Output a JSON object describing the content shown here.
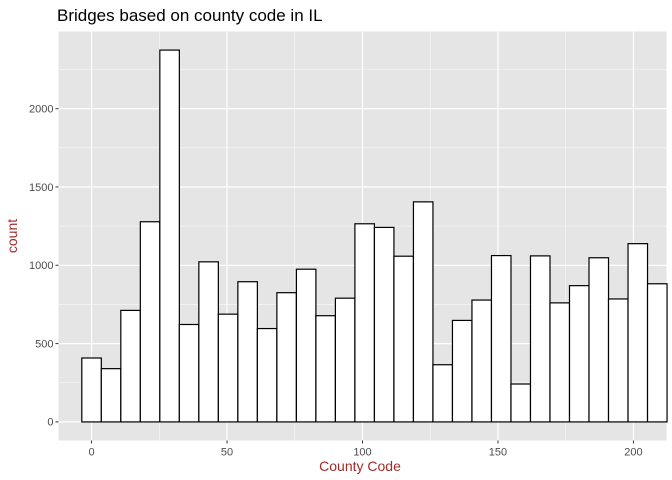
{
  "chart_data": {
    "type": "bar",
    "title": "Bridges based on county code in IL",
    "xlabel": "County Code",
    "ylabel": "count",
    "bin_width": 7.2,
    "bins": [
      {
        "x": 0.0,
        "count": 408
      },
      {
        "x": 7.2,
        "count": 340
      },
      {
        "x": 14.4,
        "count": 712
      },
      {
        "x": 21.6,
        "count": 1278
      },
      {
        "x": 28.8,
        "count": 2374
      },
      {
        "x": 36.0,
        "count": 622
      },
      {
        "x": 43.2,
        "count": 1022
      },
      {
        "x": 50.4,
        "count": 688
      },
      {
        "x": 57.6,
        "count": 895
      },
      {
        "x": 64.8,
        "count": 596
      },
      {
        "x": 72.0,
        "count": 825
      },
      {
        "x": 79.2,
        "count": 975
      },
      {
        "x": 86.4,
        "count": 678
      },
      {
        "x": 93.6,
        "count": 790
      },
      {
        "x": 100.8,
        "count": 1265
      },
      {
        "x": 108.0,
        "count": 1242
      },
      {
        "x": 115.2,
        "count": 1058
      },
      {
        "x": 122.4,
        "count": 1405
      },
      {
        "x": 129.6,
        "count": 365
      },
      {
        "x": 136.8,
        "count": 648
      },
      {
        "x": 144.0,
        "count": 778
      },
      {
        "x": 151.2,
        "count": 1062
      },
      {
        "x": 158.4,
        "count": 242
      },
      {
        "x": 165.6,
        "count": 1060
      },
      {
        "x": 172.8,
        "count": 760
      },
      {
        "x": 180.0,
        "count": 870
      },
      {
        "x": 187.2,
        "count": 1048
      },
      {
        "x": 194.4,
        "count": 785
      },
      {
        "x": 201.6,
        "count": 1138
      },
      {
        "x": 208.8,
        "count": 882
      }
    ],
    "x_ticks": [
      0,
      50,
      100,
      150,
      200
    ],
    "y_ticks": [
      0,
      500,
      1000,
      1500,
      2000
    ],
    "xlim": [
      -12.2,
      212.2
    ],
    "ylim": [
      -118.7,
      2492.7
    ],
    "grid": true,
    "colors": {
      "panel_background": "#e5e5e5",
      "grid_line": "#ffffff",
      "bar_fill": "#ffffff",
      "bar_stroke": "#000000",
      "axis_title_color": "#a52a2a",
      "tick_label_color": "#4d4d4d"
    }
  }
}
